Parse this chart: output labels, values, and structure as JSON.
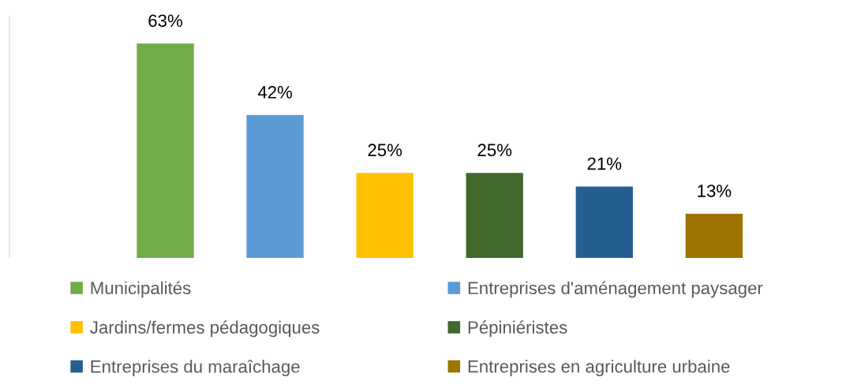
{
  "chart_data": {
    "type": "bar",
    "categories": [
      null,
      null,
      null,
      null,
      null,
      null
    ],
    "series": [
      {
        "name": "Municipalités",
        "color": "#70ad47",
        "values": [
          63,
          null,
          null,
          null,
          null,
          null
        ],
        "value_labels": [
          "63%",
          null,
          null,
          null,
          null,
          null
        ]
      },
      {
        "name": "Entreprises d'aménagement paysager",
        "color": "#5b9bd5",
        "values": [
          null,
          42,
          null,
          null,
          null,
          null
        ],
        "value_labels": [
          null,
          "42%",
          null,
          null,
          null,
          null
        ]
      },
      {
        "name": "Jardins/fermes pédagogiques",
        "color": "#ffc000",
        "values": [
          null,
          null,
          25,
          null,
          null,
          null
        ],
        "value_labels": [
          null,
          null,
          "25%",
          null,
          null,
          null
        ]
      },
      {
        "name": "Pépiniéristes",
        "color": "#43682b",
        "values": [
          null,
          null,
          null,
          25,
          null,
          null
        ],
        "value_labels": [
          null,
          null,
          null,
          "25%",
          null,
          null
        ]
      },
      {
        "name": "Entreprises du maraîchage",
        "color": "#255e91",
        "values": [
          null,
          null,
          null,
          null,
          21,
          null
        ],
        "value_labels": [
          null,
          null,
          null,
          null,
          "21%",
          null
        ]
      },
      {
        "name": "Entreprises en agriculture urbaine",
        "color": "#9e7400",
        "values": [
          null,
          null,
          null,
          null,
          null,
          13
        ],
        "value_labels": [
          null,
          null,
          null,
          null,
          null,
          "13%"
        ]
      }
    ],
    "stacked": true,
    "legend": "bottom"
  }
}
